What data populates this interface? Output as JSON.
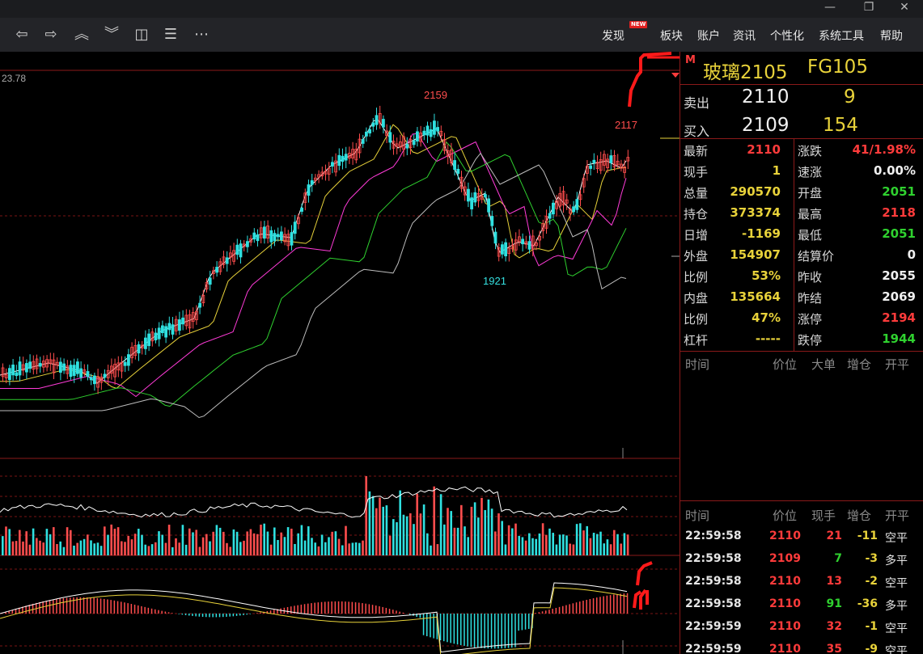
{
  "window": {
    "restore_glyph": "❐",
    "close_glyph": "✕",
    "min_glyph": "—"
  },
  "toolbar": {
    "nav_icons": [
      "back-arrow-icon",
      "forward-arrow-icon",
      "page-up-icon",
      "page-down-icon",
      "layout-icon",
      "list-icon",
      "more-icon"
    ],
    "menu": [
      "发现",
      "板块",
      "账户",
      "资讯",
      "个性化",
      "系统工具",
      "帮助"
    ],
    "new_badge": "NEW"
  },
  "chart_labels": {
    "top_price": "23.78",
    "high_label": "2159",
    "low_label": "1921",
    "last_label": "2117"
  },
  "panel": {
    "m_badge": "M",
    "title": "玻璃2105",
    "code": "FG105",
    "ask": {
      "label": "卖出",
      "price": "2110",
      "qty": "9"
    },
    "bid": {
      "label": "买入",
      "price": "2109",
      "qty": "154"
    },
    "stats_left": [
      {
        "label": "最新",
        "value": "2110",
        "color": "red"
      },
      {
        "label": "现手",
        "value": "1",
        "color": "yellow"
      },
      {
        "label": "总量",
        "value": "290570",
        "color": "yellow"
      },
      {
        "label": "持仓",
        "value": "373374",
        "color": "yellow"
      },
      {
        "label": "日增",
        "value": "-1169",
        "color": "yellow"
      },
      {
        "label": "外盘",
        "value": "154907",
        "color": "yellow"
      },
      {
        "label": "比例",
        "value": "53%",
        "color": "yellow"
      },
      {
        "label": "内盘",
        "value": "135664",
        "color": "yellow"
      },
      {
        "label": "比例",
        "value": "47%",
        "color": "yellow"
      },
      {
        "label": "杠杆",
        "value": "-----",
        "color": "yellow"
      }
    ],
    "stats_right": [
      {
        "label": "涨跌",
        "value": "41/1.98%",
        "color": "red"
      },
      {
        "label": "速涨",
        "value": "0.00%",
        "color": "white"
      },
      {
        "label": "开盘",
        "value": "2051",
        "color": "green"
      },
      {
        "label": "最高",
        "value": "2118",
        "color": "red"
      },
      {
        "label": "最低",
        "value": "2051",
        "color": "green"
      },
      {
        "label": "结算价",
        "value": "0",
        "color": "white"
      },
      {
        "label": "昨收",
        "value": "2055",
        "color": "white"
      },
      {
        "label": "昨结",
        "value": "2069",
        "color": "white"
      },
      {
        "label": "涨停",
        "value": "2194",
        "color": "red"
      },
      {
        "label": "跌停",
        "value": "1944",
        "color": "green"
      }
    ],
    "big_order_headers": [
      "时间",
      "价位",
      "大单",
      "增仓",
      "开平"
    ],
    "tick_headers": [
      "时间",
      "价位",
      "现手",
      "增仓",
      "开平"
    ],
    "ticks": [
      {
        "time": "22:59:58",
        "price": "2110",
        "qty": "21",
        "oi": "-11",
        "type": "空平",
        "price_color": "red",
        "qty_color": "red"
      },
      {
        "time": "22:59:58",
        "price": "2109",
        "qty": "7",
        "oi": "-3",
        "type": "多平",
        "price_color": "red",
        "qty_color": "green"
      },
      {
        "time": "22:59:58",
        "price": "2110",
        "qty": "13",
        "oi": "-2",
        "type": "空平",
        "price_color": "red",
        "qty_color": "red"
      },
      {
        "time": "22:59:58",
        "price": "2110",
        "qty": "91",
        "oi": "-36",
        "type": "多平",
        "price_color": "red",
        "qty_color": "green"
      },
      {
        "time": "22:59:59",
        "price": "2110",
        "qty": "32",
        "oi": "-1",
        "type": "空平",
        "price_color": "red",
        "qty_color": "red"
      },
      {
        "time": "22:59:59",
        "price": "2110",
        "qty": "35",
        "oi": "-9",
        "type": "空平",
        "price_color": "red",
        "qty_color": "red"
      }
    ]
  }
}
